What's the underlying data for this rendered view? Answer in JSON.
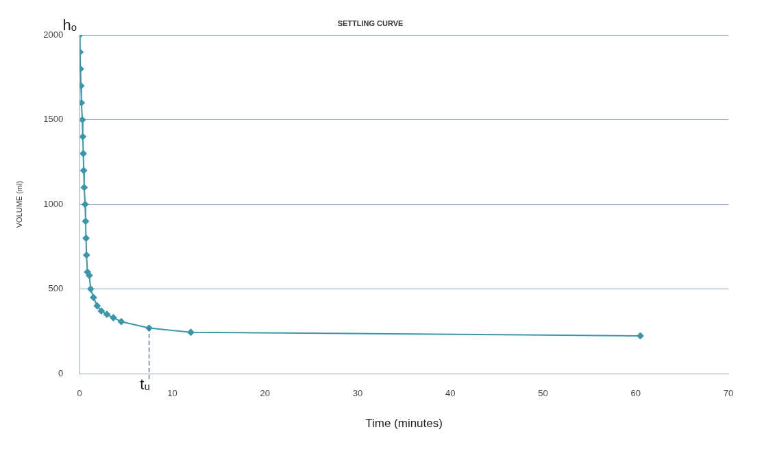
{
  "chart_data": {
    "type": "line",
    "title": "SETTLING CURVE",
    "xlabel": "Time (minutes)",
    "ylabel": "VOLUME (ml)",
    "series": [
      {
        "color": "#3a97a8",
        "x": [
          0,
          0.05,
          0.1,
          0.15,
          0.2,
          0.3,
          0.35,
          0.4,
          0.45,
          0.5,
          0.6,
          0.65,
          0.7,
          0.75,
          0.85,
          1.05,
          1.2,
          1.5,
          1.9,
          2.35,
          2.95,
          3.65,
          4.5,
          7.5,
          12,
          60.5
        ],
        "values": [
          2000,
          1900,
          1800,
          1700,
          1600,
          1500,
          1400,
          1300,
          1200,
          1100,
          1000,
          900,
          800,
          700,
          600,
          580,
          500,
          450,
          400,
          370,
          350,
          330,
          307,
          269,
          244,
          223
        ]
      }
    ],
    "xlim": [
      0,
      70
    ],
    "xticks": [
      0,
      10,
      20,
      30,
      40,
      50,
      60,
      70
    ],
    "ylim": [
      0,
      2000
    ],
    "yticks": [
      0,
      500,
      1000,
      1500,
      2000
    ],
    "grid": "y",
    "marker": "diamond",
    "line_style": "solid",
    "legend": false,
    "ref_lines": [
      {
        "axis": "x",
        "value": 7.5,
        "label": "tᵤ",
        "color": "#2f4f9f",
        "line_style": "dashed"
      }
    ],
    "annotations": [
      {
        "text": "hₒ",
        "x": 0,
        "y": 2000
      }
    ]
  }
}
